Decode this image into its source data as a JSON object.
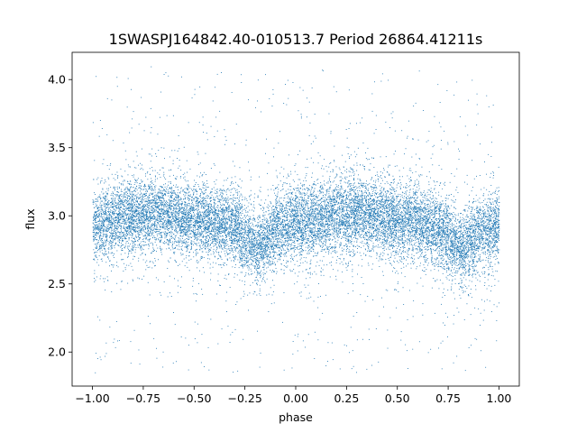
{
  "chart_data": {
    "type": "scatter",
    "title": "1SWASPJ164842.40-010513.7 Period 26864.41211s",
    "xlabel": "phase",
    "ylabel": "flux",
    "xlim": [
      -1.1,
      1.1
    ],
    "ylim": [
      1.75,
      4.2
    ],
    "xticks": [
      -1.0,
      -0.75,
      -0.5,
      -0.25,
      0.0,
      0.25,
      0.5,
      0.75,
      1.0
    ],
    "xtick_labels": [
      "−1.00",
      "−0.75",
      "−0.50",
      "−0.25",
      "0.00",
      "0.25",
      "0.50",
      "0.75",
      "1.00"
    ],
    "yticks": [
      2.0,
      2.5,
      3.0,
      3.5,
      4.0
    ],
    "ytick_labels": [
      "2.0",
      "2.5",
      "3.0",
      "3.5",
      "4.0"
    ],
    "grid": false,
    "marker_color": "#1f77b4",
    "series": [
      {
        "name": "",
        "profile": {
          "phase": [
            -1.0,
            -0.9,
            -0.8,
            -0.7,
            -0.6,
            -0.5,
            -0.4,
            -0.3,
            -0.25,
            -0.2,
            -0.15,
            -0.1,
            0.0,
            0.1,
            0.2,
            0.3,
            0.4,
            0.5,
            0.6,
            0.7,
            0.75,
            0.8,
            0.85,
            0.9,
            1.0
          ],
          "flux": [
            2.92,
            2.97,
            3.0,
            3.02,
            3.0,
            2.98,
            2.95,
            2.92,
            2.84,
            2.76,
            2.8,
            2.9,
            2.95,
            2.97,
            3.0,
            3.02,
            3.0,
            2.97,
            2.95,
            2.92,
            2.84,
            2.76,
            2.8,
            2.88,
            2.92
          ]
        },
        "scatter_sigma": 0.13,
        "outlier_range": [
          1.85,
          4.1
        ],
        "n_points": 16000
      }
    ]
  }
}
